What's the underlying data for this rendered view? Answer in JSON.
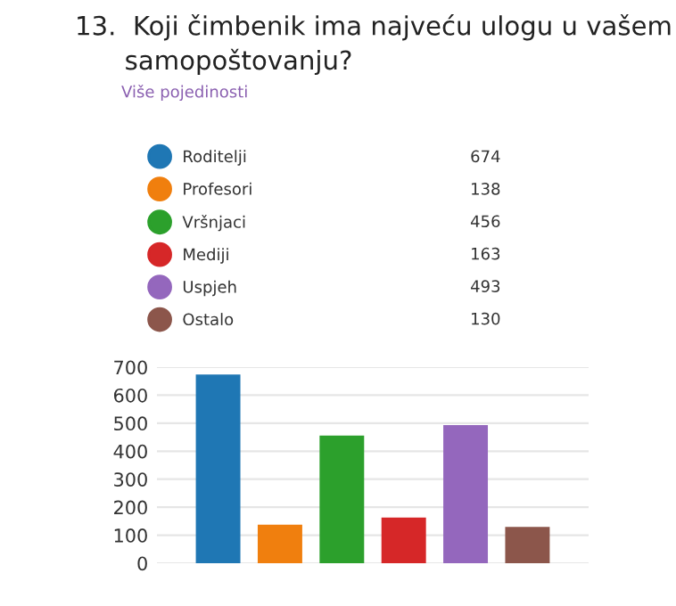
{
  "chart_data": {
    "type": "bar",
    "title": "13.  Koji čimbenik ima najveću ulogu u vašem\n      samopoštovanju?",
    "annotations": [
      "Više pojedinosti",
      "674",
      "138",
      "456",
      "163",
      "493",
      "130"
    ],
    "categories": [
      null
    ],
    "series": [
      {
        "name": "Roditelji",
        "color": "#1f77b4",
        "values": [
          674
        ]
      },
      {
        "name": "Profesori",
        "color": "#f07f0e",
        "values": [
          138
        ]
      },
      {
        "name": "Vršnjaci",
        "color": "#2ca02c",
        "values": [
          456
        ]
      },
      {
        "name": "Mediji",
        "color": "#d62728",
        "values": [
          163
        ]
      },
      {
        "name": "Uspjeh",
        "color": "#9467bd",
        "values": [
          493
        ]
      },
      {
        "name": "Ostalo",
        "color": "#8c564b",
        "values": [
          130
        ]
      }
    ],
    "ylim": [
      0,
      700
    ],
    "yticks": [
      0,
      100,
      200,
      300,
      400,
      500,
      600,
      700
    ],
    "grid": "y",
    "legend": "top",
    "tick_labels": "y"
  }
}
